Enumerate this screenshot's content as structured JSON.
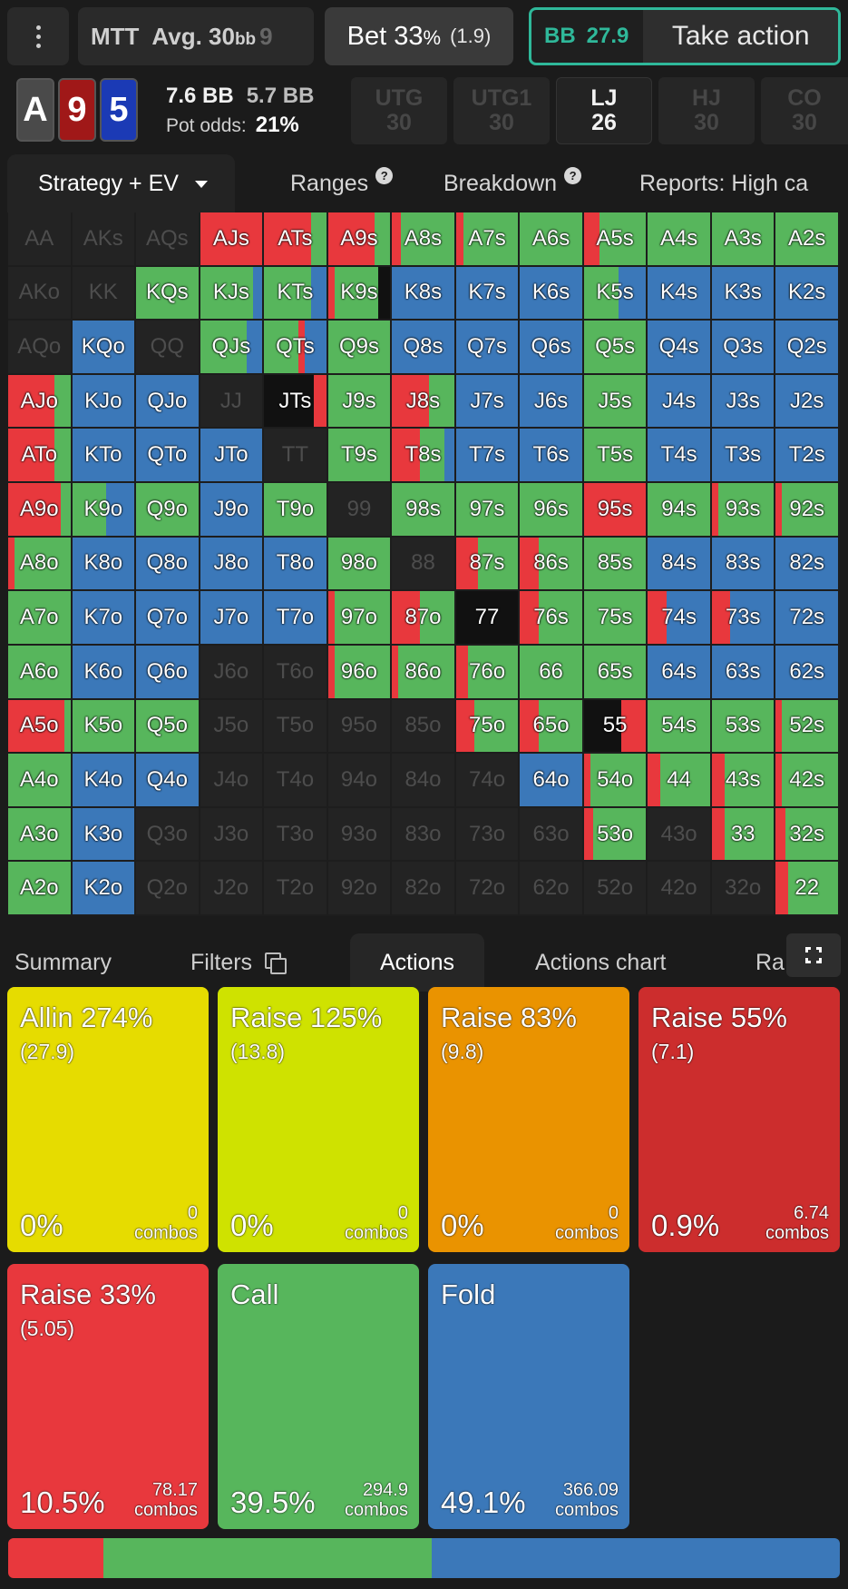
{
  "topbar": {
    "game": "MTT",
    "avg_label": "Avg. 30",
    "avg_unit": "bb",
    "cut": "9",
    "bet_label": "Bet 33",
    "bet_pct": "%",
    "bet_sub": "(1.9)",
    "player": "BB",
    "stack": "27.9",
    "action_label": "Take action"
  },
  "hand": {
    "cards": [
      "A",
      "9",
      "5"
    ],
    "pot": "7.6 BB",
    "to_call": "5.7 BB",
    "pot_odds_label": "Pot odds:",
    "pot_odds_value": "21%"
  },
  "positions": [
    {
      "name": "UTG",
      "stack": "30"
    },
    {
      "name": "UTG1",
      "stack": "30"
    },
    {
      "name": "LJ",
      "stack": "26"
    },
    {
      "name": "HJ",
      "stack": "30"
    },
    {
      "name": "CO",
      "stack": "30"
    }
  ],
  "tabs": {
    "strategy": "Strategy + EV",
    "ranges": "Ranges",
    "breakdown": "Breakdown",
    "reports": "Reports: High ca"
  },
  "grid_rows": [
    "AA AKs AQs AJs ATs A9s A8s A7s A6s A5s A4s A3s A2s",
    "AKo KK KQs KJs KTs K9s K8s K7s K6s K5s K4s K3s K2s",
    "AQo KQo QQ QJs QTs Q9s Q8s Q7s Q6s Q5s Q4s Q3s Q2s",
    "AJo KJo QJo JJ JTs J9s J8s J7s J6s J5s J4s J3s J2s",
    "ATo KTo QTo JTo TT T9s T8s T7s T6s T5s T4s T3s T2s",
    "A9o K9o Q9o J9o T9o 99 98s 97s 96s 95s 94s 93s 92s",
    "A8o K8o Q8o J8o T8o 98o 88 87s 86s 85s 84s 83s 82s",
    "A7o K7o Q7o J7o T7o 97o 87o 77 76s 75s 74s 73s 72s",
    "A6o K6o Q6o J6o T6o 96o 86o 76o 66 65s 64s 63s 62s",
    "A5o K5o Q5o J5o T5o 95o 85o 75o 65o 55 54s 53s 52s",
    "A4o K4o Q4o J4o T4o 94o 84o 74o 64o 54o 44 43s 42s",
    "A3o K3o Q3o J3o T3o 93o 83o 73o 63o 53o 43o 33 32s",
    "A2o K2o Q2o J2o T2o 92o 82o 72o 62o 52o 42o 32o 22"
  ],
  "grid_strategy": [
    [
      "E",
      "E",
      "E",
      "R",
      "R:.75,G:.25",
      "R:.75,G:.25",
      "R:.15,G:.85",
      "R:.12,G:.88",
      "G",
      "R:.25,G:.75",
      "G",
      "G",
      "G"
    ],
    [
      "E",
      "E",
      "G",
      "G:.85,B:.15",
      "G:.75,B:.25",
      "R:.1,G:.7,K:.2",
      "B",
      "B",
      "B",
      "G:.55,B:.45",
      "B",
      "B",
      "B"
    ],
    [
      "E",
      "B",
      "E",
      "G:.75,B:.25",
      "G:.55,R:.1,B:.35",
      "G",
      "B",
      "B",
      "B",
      "G",
      "B",
      "B",
      "B"
    ],
    [
      "R:.75,G:.25",
      "B",
      "B",
      "E",
      "K:.8,R:.2",
      "G",
      "R:.6,G:.4",
      "B",
      "B",
      "G",
      "B",
      "B",
      "B"
    ],
    [
      "R:.75,G:.25",
      "B",
      "B",
      "B",
      "E",
      "G",
      "R:.45,G:.4,B:.15",
      "B",
      "B",
      "G",
      "B",
      "B",
      "B"
    ],
    [
      "R:.85,G:.15",
      "G:.55,B:.45",
      "G",
      "B",
      "G",
      "E",
      "G",
      "G",
      "G",
      "R",
      "G",
      "R:.1,G:.9",
      "R:.1,G:.9"
    ],
    [
      "R:.1,G:.9",
      "B",
      "B",
      "B",
      "B",
      "G",
      "E",
      "R:.35,G:.65",
      "R:.3,G:.7",
      "G",
      "B",
      "B",
      "B"
    ],
    [
      "G",
      "B",
      "B",
      "B",
      "B",
      "R:.1,G:.9",
      "R:.45,G:.55",
      "K",
      "R:.3,G:.7",
      "G",
      "R:.3,B:.7",
      "R:.3,B:.7",
      "B"
    ],
    [
      "G",
      "B",
      "B",
      "E",
      "E",
      "R:.1,G:.9",
      "R:.1,G:.9",
      "R:.2,G:.8",
      "G",
      "G",
      "B",
      "B",
      "B"
    ],
    [
      "R:.9,G:.1",
      "G",
      "G",
      "E",
      "E",
      "E",
      "E",
      "R:.3,G:.7",
      "R:.3,G:.7",
      "K:.6,R:.4",
      "G",
      "G",
      "R:.1,G:.9"
    ],
    [
      "G",
      "B",
      "B",
      "E",
      "E",
      "E",
      "E",
      "E",
      "B",
      "R:.1,G:.9",
      "R:.2,G:.8",
      "R:.2,G:.8",
      "R:.1,G:.9"
    ],
    [
      "G",
      "B",
      "E",
      "E",
      "E",
      "E",
      "E",
      "E",
      "E",
      "R:.15,G:.85",
      "E",
      "R:.2,G:.8",
      "R:.15,G:.85"
    ],
    [
      "G",
      "B",
      "E",
      "E",
      "E",
      "E",
      "E",
      "E",
      "E",
      "E",
      "E",
      "E",
      "R:.2,G:.8"
    ]
  ],
  "bottom_tabs": {
    "summary": "Summary",
    "filters": "Filters",
    "actions": "Actions",
    "actions_chart": "Actions chart",
    "ranges_cut": "Ra"
  },
  "actions": [
    {
      "name": "Allin 274%",
      "size": "(27.9)",
      "pct": "0%",
      "combos_val": "0",
      "combos_label": "combos",
      "color": "#e6dc00"
    },
    {
      "name": "Raise 125%",
      "size": "(13.8)",
      "pct": "0%",
      "combos_val": "0",
      "combos_label": "combos",
      "color": "#cfe200"
    },
    {
      "name": "Raise 83%",
      "size": "(9.8)",
      "pct": "0%",
      "combos_val": "0",
      "combos_label": "combos",
      "color": "#ea9300"
    },
    {
      "name": "Raise 55%",
      "size": "(7.1)",
      "pct": "0.9%",
      "combos_val": "6.74",
      "combos_label": "combos",
      "color": "#cc2d2d"
    },
    {
      "name": "Raise 33%",
      "size": "(5.05)",
      "pct": "10.5%",
      "combos_val": "78.17",
      "combos_label": "combos",
      "color": "#e8383d"
    },
    {
      "name": "Call",
      "size": "",
      "pct": "39.5%",
      "combos_val": "294.9",
      "combos_label": "combos",
      "color": "#57b65c"
    },
    {
      "name": "Fold",
      "size": "",
      "pct": "49.1%",
      "combos_val": "366.09",
      "combos_label": "combos",
      "color": "#3b78b9"
    }
  ],
  "frequency_bar": [
    {
      "action": "Raise",
      "fraction": 0.114,
      "color": "#e8383d"
    },
    {
      "action": "Call",
      "fraction": 0.395,
      "color": "#57b65c"
    },
    {
      "action": "Fold",
      "fraction": 0.491,
      "color": "#3b78b9"
    }
  ],
  "colors": {
    "raise": "#e8383d",
    "call": "#57b65c",
    "fold": "#3b78b9",
    "empty": "#232323",
    "dark": "#111111",
    "accent": "#2fb89a"
  }
}
